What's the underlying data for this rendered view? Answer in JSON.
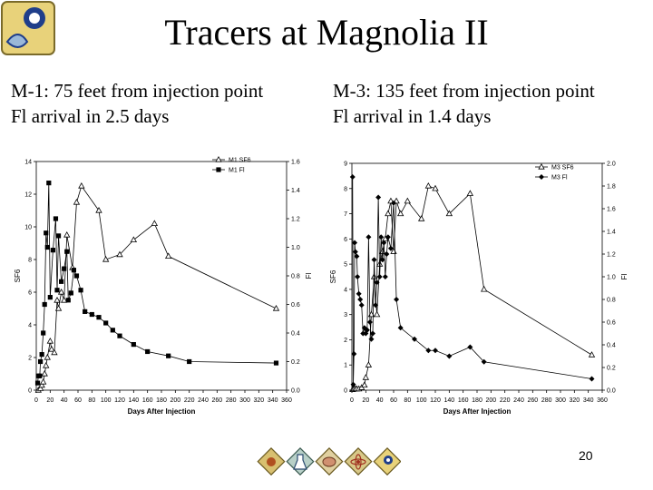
{
  "slide": {
    "title": "Tracers at Magnolia II",
    "left_caption": [
      "M-1:  75 feet from injection point",
      "Fl arrival in 2.5 days"
    ],
    "right_caption": [
      "M-3: 135 feet from injection point",
      "Fl arrival in 1.4 days"
    ],
    "page_number": "20",
    "icons": [
      "logo-icon",
      "hands-icon",
      "flask-icon",
      "brain-icon",
      "atom-icon",
      "logo-icon"
    ]
  },
  "chart_data": [
    {
      "type": "line",
      "xlabel": "Days After Injection",
      "ylabel": "SF6",
      "y2label": "Fl",
      "xlim": [
        0,
        360
      ],
      "xticks": [
        0,
        20,
        40,
        60,
        80,
        100,
        120,
        140,
        160,
        180,
        200,
        220,
        240,
        260,
        280,
        300,
        320,
        340,
        360
      ],
      "ylim": [
        0,
        14
      ],
      "yticks": [
        0,
        2,
        4,
        6,
        8,
        10,
        12,
        14
      ],
      "y2lim": [
        0,
        1.6
      ],
      "y2ticks": [
        "0.0",
        "0.2",
        "0.4",
        "0.6",
        "0.8",
        "1.0",
        "1.2",
        "1.4",
        "1.6"
      ],
      "legend_position": "top-right",
      "series": [
        {
          "name": "M1 SF6",
          "axis": "left",
          "marker": "triangle-open",
          "x": [
            3,
            6,
            8,
            10,
            12,
            14,
            16,
            20,
            22,
            26,
            30,
            32,
            36,
            40,
            44,
            52,
            58,
            65,
            90,
            100,
            120,
            140,
            170,
            190,
            345
          ],
          "y": [
            0,
            0.1,
            0.3,
            0.5,
            1.0,
            1.5,
            2.0,
            3.0,
            2.5,
            2.3,
            5.5,
            5.0,
            6.0,
            5.5,
            9.5,
            7.5,
            11.5,
            12.5,
            11.0,
            8.0,
            8.3,
            9.2,
            10.2,
            8.2,
            5.0
          ]
        },
        {
          "name": "M1 Fl",
          "axis": "right",
          "marker": "square-filled",
          "x": [
            2,
            3,
            5,
            6,
            8,
            10,
            12,
            14,
            16,
            18,
            20,
            24,
            28,
            30,
            32,
            36,
            40,
            44,
            46,
            50,
            54,
            58,
            64,
            70,
            80,
            90,
            100,
            110,
            120,
            140,
            160,
            190,
            220,
            345
          ],
          "y": [
            0.05,
            0.1,
            0.1,
            0.2,
            0.25,
            0.4,
            0.6,
            1.1,
            1.0,
            1.45,
            0.65,
            0.98,
            1.2,
            0.7,
            1.08,
            0.76,
            0.85,
            0.97,
            0.63,
            0.68,
            0.84,
            0.8,
            0.7,
            0.55,
            0.53,
            0.51,
            0.47,
            0.42,
            0.38,
            0.32,
            0.27,
            0.24,
            0.2,
            0.19
          ]
        }
      ]
    },
    {
      "type": "line",
      "xlabel": "Days After Injection",
      "ylabel": "SF6",
      "y2label": "Fl",
      "xlim": [
        0,
        360
      ],
      "xticks": [
        0,
        20,
        40,
        60,
        80,
        100,
        120,
        140,
        160,
        180,
        200,
        220,
        240,
        260,
        280,
        300,
        320,
        340,
        360
      ],
      "ylim": [
        0,
        9
      ],
      "yticks": [
        0,
        1,
        2,
        3,
        4,
        5,
        6,
        7,
        8,
        9
      ],
      "y2lim": [
        0,
        2.0
      ],
      "y2ticks": [
        "0.0",
        "0.2",
        "0.4",
        "0.6",
        "0.8",
        "1.0",
        "1.2",
        "1.4",
        "1.6",
        "1.8",
        "2.0"
      ],
      "legend_position": "top-right",
      "series": [
        {
          "name": "M3 SF6",
          "axis": "left",
          "marker": "triangle-open",
          "x": [
            1,
            3,
            5,
            7,
            10,
            14,
            18,
            20,
            24,
            28,
            32,
            36,
            40,
            44,
            48,
            52,
            56,
            60,
            64,
            70,
            80,
            100,
            110,
            120,
            140,
            170,
            190,
            345
          ],
          "y": [
            0.02,
            0.05,
            0.05,
            0.05,
            0.05,
            0.1,
            0.2,
            0.5,
            1.0,
            3.0,
            4.5,
            3.0,
            5.0,
            5.5,
            6.0,
            7.0,
            7.5,
            5.5,
            7.5,
            7.0,
            7.5,
            6.8,
            8.1,
            8.0,
            7.0,
            7.8,
            4.0,
            1.4
          ]
        },
        {
          "name": "M3 Fl",
          "axis": "right",
          "marker": "diamond-filled",
          "x": [
            1,
            2,
            3,
            4,
            5,
            7,
            8,
            10,
            12,
            14,
            16,
            18,
            20,
            22,
            24,
            26,
            28,
            30,
            32,
            34,
            36,
            38,
            40,
            42,
            44,
            46,
            48,
            50,
            52,
            56,
            60,
            64,
            70,
            90,
            110,
            120,
            140,
            170,
            190,
            345
          ],
          "y": [
            1.88,
            0.05,
            0.32,
            1.3,
            1.22,
            1.18,
            1.0,
            0.85,
            0.8,
            0.75,
            0.5,
            0.55,
            0.5,
            0.53,
            1.35,
            0.6,
            0.45,
            0.5,
            1.15,
            0.75,
            0.95,
            1.7,
            1.0,
            1.35,
            1.15,
            1.3,
            1.0,
            1.2,
            1.35,
            1.25,
            1.65,
            0.8,
            0.55,
            0.45,
            0.35,
            0.35,
            0.3,
            0.38,
            0.25,
            0.1
          ]
        }
      ]
    }
  ]
}
